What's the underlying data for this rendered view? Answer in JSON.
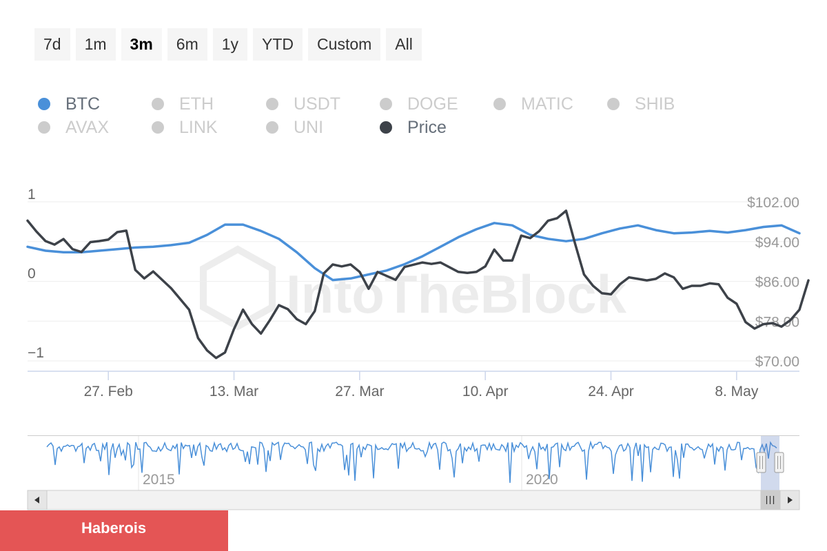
{
  "range_selector": {
    "buttons": [
      "7d",
      "1m",
      "3m",
      "6m",
      "1y",
      "YTD",
      "Custom",
      "All"
    ],
    "active": "3m"
  },
  "legend": {
    "items": [
      {
        "label": "BTC",
        "color": "#4a90d9",
        "active": true
      },
      {
        "label": "ETH",
        "active": false
      },
      {
        "label": "USDT",
        "active": false
      },
      {
        "label": "DOGE",
        "active": false
      },
      {
        "label": "MATIC",
        "active": false
      },
      {
        "label": "SHIB",
        "active": false
      },
      {
        "label": "AVAX",
        "active": false
      },
      {
        "label": "LINK",
        "active": false
      },
      {
        "label": "UNI",
        "active": false
      },
      {
        "label": "Price",
        "color": "#3d4249",
        "active": true
      }
    ]
  },
  "watermark": "IntoTheBlock",
  "navigator": {
    "year_labels": [
      "2015",
      "2020"
    ]
  },
  "footer": {
    "label": "Haberois"
  },
  "chart_data": {
    "type": "line",
    "left_axis": {
      "ticks": [
        "1",
        "0",
        "−1"
      ],
      "range": [
        -1,
        1
      ]
    },
    "right_axis": {
      "ticks": [
        "$102.00",
        "$94.00",
        "$86.00",
        "$78.00",
        "$70.00"
      ],
      "range": [
        70,
        102
      ]
    },
    "x_axis": {
      "ticks": [
        "27. Feb",
        "13. Mar",
        "27. Mar",
        "10. Apr",
        "24. Apr",
        "8. May"
      ],
      "range": [
        "2023-02-18",
        "2023-05-15"
      ]
    },
    "grid": true,
    "series": [
      {
        "name": "BTC",
        "axis": "left",
        "color": "#4a90d9",
        "points": [
          [
            "2023-02-18",
            0.45
          ],
          [
            "2023-02-20",
            0.4
          ],
          [
            "2023-02-22",
            0.38
          ],
          [
            "2023-02-24",
            0.38
          ],
          [
            "2023-02-26",
            0.4
          ],
          [
            "2023-02-28",
            0.42
          ],
          [
            "2023-03-02",
            0.44
          ],
          [
            "2023-03-04",
            0.45
          ],
          [
            "2023-03-06",
            0.47
          ],
          [
            "2023-03-08",
            0.5
          ],
          [
            "2023-03-10",
            0.6
          ],
          [
            "2023-03-12",
            0.73
          ],
          [
            "2023-03-14",
            0.73
          ],
          [
            "2023-03-16",
            0.65
          ],
          [
            "2023-03-18",
            0.55
          ],
          [
            "2023-03-20",
            0.38
          ],
          [
            "2023-03-22",
            0.18
          ],
          [
            "2023-03-24",
            0.03
          ],
          [
            "2023-03-26",
            0.05
          ],
          [
            "2023-03-28",
            0.1
          ],
          [
            "2023-03-30",
            0.15
          ],
          [
            "2023-04-01",
            0.23
          ],
          [
            "2023-04-03",
            0.33
          ],
          [
            "2023-04-05",
            0.45
          ],
          [
            "2023-04-07",
            0.57
          ],
          [
            "2023-04-09",
            0.67
          ],
          [
            "2023-04-11",
            0.75
          ],
          [
            "2023-04-13",
            0.72
          ],
          [
            "2023-04-15",
            0.6
          ],
          [
            "2023-04-17",
            0.55
          ],
          [
            "2023-04-19",
            0.52
          ],
          [
            "2023-04-21",
            0.55
          ],
          [
            "2023-04-23",
            0.62
          ],
          [
            "2023-04-25",
            0.68
          ],
          [
            "2023-04-27",
            0.72
          ],
          [
            "2023-04-29",
            0.66
          ],
          [
            "2023-05-01",
            0.62
          ],
          [
            "2023-05-03",
            0.63
          ],
          [
            "2023-05-05",
            0.65
          ],
          [
            "2023-05-07",
            0.63
          ],
          [
            "2023-05-09",
            0.66
          ],
          [
            "2023-05-11",
            0.7
          ],
          [
            "2023-05-13",
            0.72
          ],
          [
            "2023-05-15",
            0.62
          ]
        ]
      },
      {
        "name": "Price",
        "axis": "right",
        "color": "#3d4249",
        "points": [
          [
            "2023-02-18",
            98.2
          ],
          [
            "2023-02-19",
            96.0
          ],
          [
            "2023-02-20",
            94.1
          ],
          [
            "2023-02-21",
            93.4
          ],
          [
            "2023-02-22",
            94.5
          ],
          [
            "2023-02-23",
            92.5
          ],
          [
            "2023-02-24",
            91.9
          ],
          [
            "2023-02-25",
            93.9
          ],
          [
            "2023-02-26",
            94.1
          ],
          [
            "2023-02-27",
            94.4
          ],
          [
            "2023-02-28",
            95.9
          ],
          [
            "2023-03-01",
            96.2
          ],
          [
            "2023-03-02",
            88.3
          ],
          [
            "2023-03-03",
            86.6
          ],
          [
            "2023-03-04",
            88.0
          ],
          [
            "2023-03-06",
            84.6
          ],
          [
            "2023-03-08",
            80.3
          ],
          [
            "2023-03-09",
            74.6
          ],
          [
            "2023-03-10",
            72.1
          ],
          [
            "2023-03-11",
            70.6
          ],
          [
            "2023-03-12",
            71.7
          ],
          [
            "2023-03-13",
            76.4
          ],
          [
            "2023-03-14",
            80.3
          ],
          [
            "2023-03-15",
            77.4
          ],
          [
            "2023-03-16",
            75.5
          ],
          [
            "2023-03-17",
            78.2
          ],
          [
            "2023-03-18",
            81.2
          ],
          [
            "2023-03-19",
            80.4
          ],
          [
            "2023-03-20",
            78.4
          ],
          [
            "2023-03-21",
            77.4
          ],
          [
            "2023-03-22",
            80.0
          ],
          [
            "2023-03-23",
            87.6
          ],
          [
            "2023-03-24",
            89.4
          ],
          [
            "2023-03-25",
            89.0
          ],
          [
            "2023-03-26",
            89.4
          ],
          [
            "2023-03-27",
            87.9
          ],
          [
            "2023-03-28",
            84.5
          ],
          [
            "2023-03-29",
            87.9
          ],
          [
            "2023-03-31",
            86.3
          ],
          [
            "2023-04-01",
            88.9
          ],
          [
            "2023-04-03",
            89.8
          ],
          [
            "2023-04-04",
            89.5
          ],
          [
            "2023-04-05",
            89.8
          ],
          [
            "2023-04-07",
            87.9
          ],
          [
            "2023-04-08",
            87.7
          ],
          [
            "2023-04-09",
            87.9
          ],
          [
            "2023-04-10",
            89.0
          ],
          [
            "2023-04-11",
            92.4
          ],
          [
            "2023-04-12",
            90.2
          ],
          [
            "2023-04-13",
            90.2
          ],
          [
            "2023-04-14",
            95.2
          ],
          [
            "2023-04-15",
            94.7
          ],
          [
            "2023-04-16",
            96.1
          ],
          [
            "2023-04-17",
            98.2
          ],
          [
            "2023-04-18",
            98.7
          ],
          [
            "2023-04-19",
            100.2
          ],
          [
            "2023-04-20",
            93.6
          ],
          [
            "2023-04-21",
            87.4
          ],
          [
            "2023-04-22",
            85.1
          ],
          [
            "2023-04-23",
            83.6
          ],
          [
            "2023-04-24",
            83.4
          ],
          [
            "2023-04-25",
            85.4
          ],
          [
            "2023-04-26",
            86.8
          ],
          [
            "2023-04-27",
            86.5
          ],
          [
            "2023-04-28",
            86.2
          ],
          [
            "2023-04-29",
            86.5
          ],
          [
            "2023-04-30",
            87.6
          ],
          [
            "2023-05-01",
            86.8
          ],
          [
            "2023-05-02",
            84.5
          ],
          [
            "2023-05-03",
            85.1
          ],
          [
            "2023-05-04",
            85.1
          ],
          [
            "2023-05-05",
            85.6
          ],
          [
            "2023-05-06",
            85.4
          ],
          [
            "2023-05-07",
            82.7
          ],
          [
            "2023-05-08",
            81.5
          ],
          [
            "2023-05-09",
            77.8
          ],
          [
            "2023-05-10",
            76.5
          ],
          [
            "2023-05-11",
            77.4
          ],
          [
            "2023-05-12",
            77.6
          ],
          [
            "2023-05-13",
            76.9
          ],
          [
            "2023-05-14",
            78.2
          ],
          [
            "2023-05-15",
            80.3
          ],
          [
            "2023-05-16",
            86.2
          ]
        ]
      }
    ]
  }
}
